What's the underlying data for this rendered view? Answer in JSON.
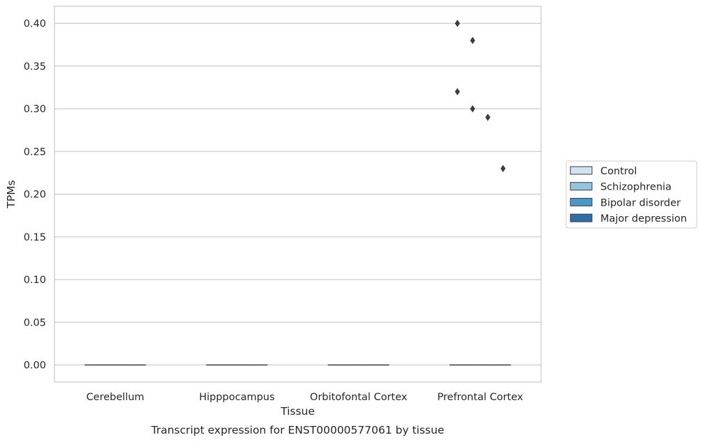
{
  "chart_data": {
    "type": "box",
    "title": "Transcript expression for ENST00000577061 by tissue",
    "xlabel": "Tissue",
    "ylabel": "TPMs",
    "categories": [
      "Cerebellum",
      "Hipppocampus",
      "Orbitofontal Cortex",
      "Prefrontal Cortex"
    ],
    "ylim": [
      -0.02,
      0.42
    ],
    "yticks": [
      0.0,
      0.05,
      0.1,
      0.15,
      0.2,
      0.25,
      0.3,
      0.35,
      0.4
    ],
    "ytick_labels": [
      "0.00",
      "0.05",
      "0.10",
      "0.15",
      "0.20",
      "0.25",
      "0.30",
      "0.35",
      "0.40"
    ],
    "grid": "horizontal",
    "legend_position": "right",
    "series": [
      {
        "name": "Control",
        "color": "#d0e1f2",
        "median": [
          0,
          0,
          0,
          0
        ],
        "q1": [
          0,
          0,
          0,
          0
        ],
        "q3": [
          0,
          0,
          0,
          0
        ],
        "outliers": [
          [],
          [],
          [],
          [
            0.4,
            0.32
          ]
        ]
      },
      {
        "name": "Schizophrenia",
        "color": "#94c4df",
        "median": [
          0,
          0,
          0,
          0
        ],
        "q1": [
          0,
          0,
          0,
          0
        ],
        "q3": [
          0,
          0,
          0,
          0
        ],
        "outliers": [
          [],
          [],
          [],
          [
            0.38,
            0.3
          ]
        ]
      },
      {
        "name": "Bipolar disorder",
        "color": "#4a98c9",
        "median": [
          0,
          0,
          0,
          0
        ],
        "q1": [
          0,
          0,
          0,
          0
        ],
        "q3": [
          0,
          0,
          0,
          0
        ],
        "outliers": [
          [],
          [],
          [],
          [
            0.29
          ]
        ]
      },
      {
        "name": "Major depression",
        "color": "#2e6fa8",
        "median": [
          0,
          0,
          0,
          0
        ],
        "q1": [
          0,
          0,
          0,
          0
        ],
        "q3": [
          0,
          0,
          0,
          0
        ],
        "outliers": [
          [],
          [],
          [],
          [
            0.23
          ]
        ]
      }
    ]
  }
}
